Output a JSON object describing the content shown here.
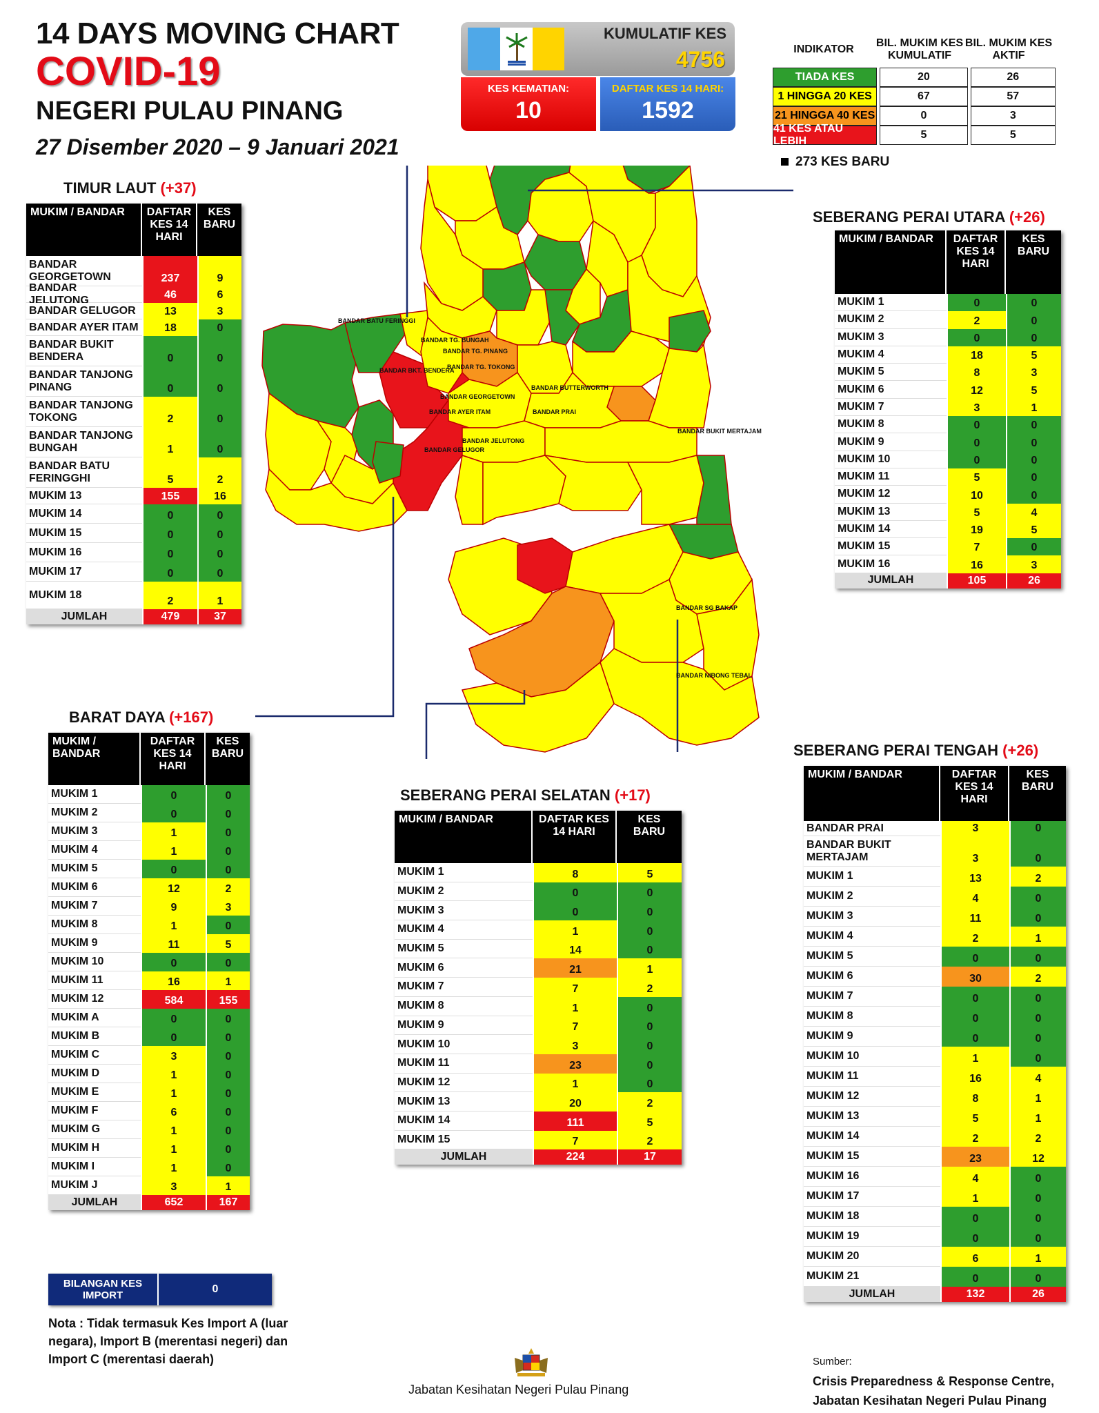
{
  "header": {
    "line1": "14  DAYS MOVING CHART",
    "line2": "COVID-19",
    "line3": "NEGERI PULAU PINANG",
    "line4": "27 Disember 2020 – 9 Januari 2021"
  },
  "stats": {
    "kumulatif_label": "KUMULATIF KES",
    "kumulatif_value": "4756",
    "kematian_label": "KES KEMATIAN:",
    "kematian_value": "10",
    "daftar_label": "DAFTAR KES 14 HARI:",
    "daftar_value": "1592"
  },
  "indicator": {
    "h1": "INDIKATOR",
    "h2": "BIL. MUKIM KES KUMULATIF",
    "h3": "BIL. MUKIM KES AKTIF",
    "rows": [
      {
        "label": "TIADA KES",
        "a": "20",
        "b": "26",
        "color": "#2e9e2e",
        "fg": "#fff"
      },
      {
        "label": "1 HINGGA 20 KES",
        "a": "67",
        "b": "57",
        "color": "#ffff00",
        "fg": "#000"
      },
      {
        "label": "21 HINGGA 40 KES",
        "a": "0",
        "b": "3",
        "color": "#f7941d",
        "fg": "#000"
      },
      {
        "label": "41 KES ATAU LEBIH",
        "a": "5",
        "b": "5",
        "color": "#e8141b",
        "fg": "#fff"
      }
    ]
  },
  "new_cases": "273 KES BARU",
  "colors": {
    "green": "#2e9e2e",
    "yellow": "#ffff00",
    "orange": "#f7941d",
    "red": "#e8141b"
  },
  "tables": {
    "timur": {
      "title": "TIMUR LAUT",
      "plus": "(+37)",
      "h1": "MUKIM / BANDAR",
      "h2": "DAFTAR KES 14 HARI",
      "h3": "KES BARU",
      "rows": [
        [
          "BANDAR GEORGETOWN",
          "237",
          "9"
        ],
        [
          "BANDAR JELUTONG",
          "46",
          "6"
        ],
        [
          "BANDAR GELUGOR",
          "13",
          "3"
        ],
        [
          "BANDAR AYER ITAM",
          "18",
          "0"
        ],
        [
          "BANDAR BUKIT BENDERA",
          "0",
          "0"
        ],
        [
          "BANDAR TANJONG PINANG",
          "0",
          "0"
        ],
        [
          "BANDAR TANJONG TOKONG",
          "2",
          "0"
        ],
        [
          "BANDAR TANJONG BUNGAH",
          "1",
          "0"
        ],
        [
          "BANDAR BATU FERINGGHI",
          "5",
          "2"
        ],
        [
          "MUKIM 13",
          "155",
          "16"
        ],
        [
          "MUKIM 14",
          "0",
          "0"
        ],
        [
          "MUKIM 15",
          "0",
          "0"
        ],
        [
          "MUKIM 16",
          "0",
          "0"
        ],
        [
          "MUKIM 17",
          "0",
          "0"
        ],
        [
          "MUKIM 18",
          "2",
          "1"
        ]
      ],
      "total": [
        "JUMLAH",
        "479",
        "37"
      ]
    },
    "barat": {
      "title": "BARAT DAYA",
      "plus": "(+167)",
      "h1": "MUKIM / BANDAR",
      "h2": "DAFTAR KES 14 HARI",
      "h3": "KES BARU",
      "rows": [
        [
          "MUKIM 1",
          "0",
          "0"
        ],
        [
          "MUKIM 2",
          "0",
          "0"
        ],
        [
          "MUKIM 3",
          "1",
          "0"
        ],
        [
          "MUKIM 4",
          "1",
          "0"
        ],
        [
          "MUKIM 5",
          "0",
          "0"
        ],
        [
          "MUKIM 6",
          "12",
          "2"
        ],
        [
          "MUKIM 7",
          "9",
          "3"
        ],
        [
          "MUKIM 8",
          "1",
          "0"
        ],
        [
          "MUKIM 9",
          "11",
          "5"
        ],
        [
          "MUKIM 10",
          "0",
          "0"
        ],
        [
          "MUKIM 11",
          "16",
          "1"
        ],
        [
          "MUKIM 12",
          "584",
          "155"
        ],
        [
          "MUKIM A",
          "0",
          "0"
        ],
        [
          "MUKIM B",
          "0",
          "0"
        ],
        [
          "MUKIM C",
          "3",
          "0"
        ],
        [
          "MUKIM D",
          "1",
          "0"
        ],
        [
          "MUKIM E",
          "1",
          "0"
        ],
        [
          "MUKIM F",
          "6",
          "0"
        ],
        [
          "MUKIM G",
          "1",
          "0"
        ],
        [
          "MUKIM H",
          "1",
          "0"
        ],
        [
          "MUKIM I",
          "1",
          "0"
        ],
        [
          "MUKIM J",
          "3",
          "1"
        ]
      ],
      "total": [
        "JUMLAH",
        "652",
        "167"
      ]
    },
    "spu": {
      "title": "SEBERANG PERAI UTARA",
      "plus": "(+26)",
      "h1": "MUKIM / BANDAR",
      "h2": "DAFTAR KES 14 HARI",
      "h3": "KES BARU",
      "rows": [
        [
          "MUKIM 1",
          "0",
          "0"
        ],
        [
          "MUKIM 2",
          "2",
          "0"
        ],
        [
          "MUKIM 3",
          "0",
          "0"
        ],
        [
          "MUKIM 4",
          "18",
          "5"
        ],
        [
          "MUKIM 5",
          "8",
          "3"
        ],
        [
          "MUKIM 6",
          "12",
          "5"
        ],
        [
          "MUKIM 7",
          "3",
          "1"
        ],
        [
          "MUKIM 8",
          "0",
          "0"
        ],
        [
          "MUKIM 9",
          "0",
          "0"
        ],
        [
          "MUKIM 10",
          "0",
          "0"
        ],
        [
          "MUKIM 11",
          "5",
          "0"
        ],
        [
          "MUKIM 12",
          "10",
          "0"
        ],
        [
          "MUKIM 13",
          "5",
          "4"
        ],
        [
          "MUKIM 14",
          "19",
          "5"
        ],
        [
          "MUKIM 15",
          "7",
          "0"
        ],
        [
          "MUKIM 16",
          "16",
          "3"
        ]
      ],
      "total": [
        "JUMLAH",
        "105",
        "26"
      ]
    },
    "sps": {
      "title": "SEBERANG PERAI SELATAN",
      "plus": "(+17)",
      "h1": "MUKIM / BANDAR",
      "h2": "DAFTAR KES 14 HARI",
      "h3": "KES BARU",
      "rows": [
        [
          "MUKIM 1",
          "8",
          "5"
        ],
        [
          "MUKIM 2",
          "0",
          "0"
        ],
        [
          "MUKIM 3",
          "0",
          "0"
        ],
        [
          "MUKIM 4",
          "1",
          "0"
        ],
        [
          "MUKIM 5",
          "14",
          "0"
        ],
        [
          "MUKIM 6",
          "21",
          "1"
        ],
        [
          "MUKIM 7",
          "7",
          "2"
        ],
        [
          "MUKIM 8",
          "1",
          "0"
        ],
        [
          "MUKIM 9",
          "7",
          "0"
        ],
        [
          "MUKIM 10",
          "3",
          "0"
        ],
        [
          "MUKIM 11",
          "23",
          "0"
        ],
        [
          "MUKIM 12",
          "1",
          "0"
        ],
        [
          "MUKIM 13",
          "20",
          "2"
        ],
        [
          "MUKIM 14",
          "111",
          "5"
        ],
        [
          "MUKIM 15",
          "7",
          "2"
        ]
      ],
      "total": [
        "JUMLAH",
        "224",
        "17"
      ]
    },
    "spt": {
      "title": "SEBERANG PERAI TENGAH",
      "plus": "(+26)",
      "h1": "MUKIM / BANDAR",
      "h2": "DAFTAR KES 14 HARI",
      "h3": "KES BARU",
      "rows": [
        [
          "BANDAR PRAI",
          "3",
          "0"
        ],
        [
          "BANDAR BUKIT MERTAJAM",
          "3",
          "0"
        ],
        [
          "MUKIM 1",
          "13",
          "2"
        ],
        [
          "MUKIM 2",
          "4",
          "0"
        ],
        [
          "MUKIM 3",
          "11",
          "0"
        ],
        [
          "MUKIM 4",
          "2",
          "1"
        ],
        [
          "MUKIM 5",
          "0",
          "0"
        ],
        [
          "MUKIM 6",
          "30",
          "2"
        ],
        [
          "MUKIM 7",
          "0",
          "0"
        ],
        [
          "MUKIM 8",
          "0",
          "0"
        ],
        [
          "MUKIM 9",
          "0",
          "0"
        ],
        [
          "MUKIM 10",
          "1",
          "0"
        ],
        [
          "MUKIM 11",
          "16",
          "4"
        ],
        [
          "MUKIM 12",
          "8",
          "1"
        ],
        [
          "MUKIM 13",
          "5",
          "1"
        ],
        [
          "MUKIM 14",
          "2",
          "2"
        ],
        [
          "MUKIM 15",
          "23",
          "12"
        ],
        [
          "MUKIM 16",
          "4",
          "0"
        ],
        [
          "MUKIM 17",
          "1",
          "0"
        ],
        [
          "MUKIM 18",
          "0",
          "0"
        ],
        [
          "MUKIM 19",
          "0",
          "0"
        ],
        [
          "MUKIM 20",
          "6",
          "1"
        ],
        [
          "MUKIM 21",
          "0",
          "0"
        ]
      ],
      "total": [
        "JUMLAH",
        "132",
        "26"
      ]
    }
  },
  "import": {
    "label": "BILANGAN KES IMPORT",
    "value": "0"
  },
  "note": "Nota : Tidak termasuk Kes Import A (luar negara), Import B (merentasi negeri) dan Import C (merentasi daerah)",
  "footer": "Jabatan Kesihatan Negeri Pulau Pinang",
  "source": {
    "label": "Sumber:",
    "line1": "Crisis Preparedness & Response Centre,",
    "line2": "Jabatan Kesihatan Negeri Pulau Pinang"
  },
  "map_labels": [
    "BANDAR BATU FERINGGI",
    "BANDAR TG. BUNGAH",
    "BANDAR TG. PINANG",
    "BANDAR TG. TOKONG",
    "BANDAR BKT. BENDERA",
    "BANDAR GEORGETOWN",
    "BANDAR AYER ITAM",
    "BANDAR JELUTONG",
    "BANDAR GELUGOR",
    "BANDAR BUTTERWORTH",
    "BANDAR PRAI",
    "BANDAR BUKIT MERTAJAM",
    "BANDAR SG BAKAP",
    "BANDAR NIBONG TEBAL"
  ],
  "chart_data": {
    "type": "table",
    "title": "14 DAYS MOVING CHART COVID-19 NEGERI PULAU PINANG",
    "series": [
      {
        "name": "TIMUR LAUT",
        "total": [
          479,
          37
        ]
      },
      {
        "name": "BARAT DAYA",
        "total": [
          652,
          167
        ]
      },
      {
        "name": "SEBERANG PERAI UTARA",
        "total": [
          105,
          26
        ]
      },
      {
        "name": "SEBERANG PERAI SELATAN",
        "total": [
          224,
          17
        ]
      },
      {
        "name": "SEBERANG PERAI TENGAH",
        "total": [
          132,
          26
        ]
      }
    ],
    "columns": [
      "DAFTAR KES 14 HARI",
      "KES BARU"
    ]
  }
}
